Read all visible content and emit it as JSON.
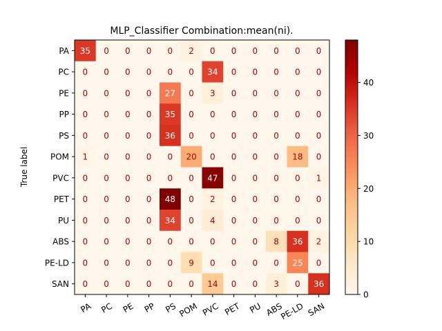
{
  "chart_data": {
    "type": "heatmap",
    "title": "MLP_Classifier Combination:mean(ni).",
    "ylabel": "True label",
    "xlabel": "",
    "x_categories": [
      "PA",
      "PC",
      "PE",
      "PP",
      "PS",
      "POM",
      "PVC",
      "PET",
      "PU",
      "ABS",
      "PE-LD",
      "SAN"
    ],
    "y_categories": [
      "PA",
      "PC",
      "PE",
      "PP",
      "PS",
      "POM",
      "PVC",
      "PET",
      "PU",
      "ABS",
      "PE-LD",
      "SAN"
    ],
    "values": [
      [
        35,
        0,
        0,
        0,
        0,
        2,
        0,
        0,
        0,
        0,
        0,
        0
      ],
      [
        0,
        0,
        0,
        0,
        0,
        0,
        34,
        0,
        0,
        0,
        0,
        0
      ],
      [
        0,
        0,
        0,
        0,
        27,
        0,
        3,
        0,
        0,
        0,
        0,
        0
      ],
      [
        0,
        0,
        0,
        0,
        35,
        0,
        0,
        0,
        0,
        0,
        0,
        0
      ],
      [
        0,
        0,
        0,
        0,
        36,
        0,
        0,
        0,
        0,
        0,
        0,
        0
      ],
      [
        1,
        0,
        0,
        0,
        0,
        20,
        0,
        0,
        0,
        0,
        18,
        0
      ],
      [
        0,
        0,
        0,
        0,
        0,
        0,
        47,
        0,
        0,
        0,
        0,
        1
      ],
      [
        0,
        0,
        0,
        0,
        48,
        0,
        2,
        0,
        0,
        0,
        0,
        0
      ],
      [
        0,
        0,
        0,
        0,
        34,
        0,
        4,
        0,
        0,
        0,
        0,
        0
      ],
      [
        0,
        0,
        0,
        0,
        0,
        0,
        0,
        0,
        0,
        8,
        36,
        2
      ],
      [
        0,
        0,
        0,
        0,
        0,
        9,
        0,
        0,
        0,
        0,
        25,
        0
      ],
      [
        0,
        0,
        0,
        0,
        0,
        0,
        14,
        0,
        0,
        3,
        0,
        36
      ]
    ],
    "colormap": "OrRd",
    "colorbar": {
      "range": [
        0,
        48
      ],
      "ticks": [
        0,
        10,
        20,
        30,
        40
      ]
    },
    "grid": false
  }
}
